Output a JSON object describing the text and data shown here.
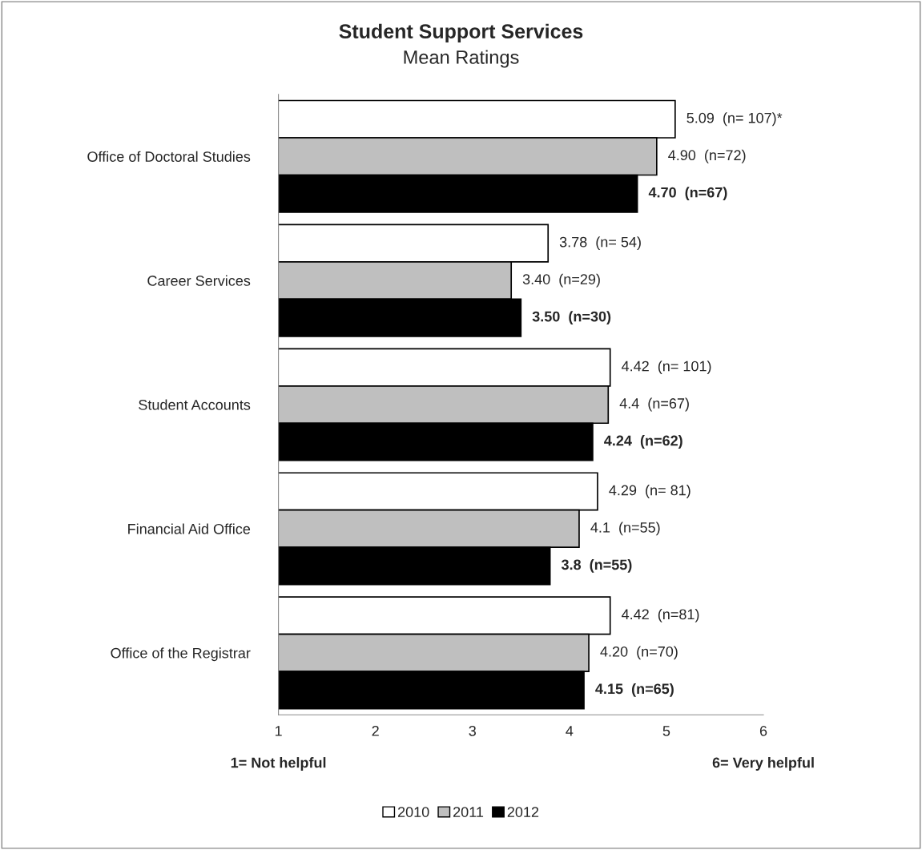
{
  "chart_data": {
    "type": "bar",
    "orientation": "horizontal",
    "title": "Student Support Services",
    "subtitle": "Mean Ratings",
    "categories": [
      "Office of Doctoral Studies",
      "Career Services",
      "Student Accounts",
      "Financial Aid Office",
      "Office of the Registrar"
    ],
    "series": [
      {
        "name": "2010",
        "color": "#ffffff",
        "values": [
          5.09,
          3.78,
          4.42,
          4.29,
          4.42
        ],
        "value_labels": [
          "5.09  (n= 107)*",
          "3.78  (n= 54)",
          "4.42  (n= 101)",
          "4.29  (n= 81)",
          "4.42  (n=81)"
        ]
      },
      {
        "name": "2011",
        "color": "#bfbfbf",
        "values": [
          4.9,
          3.4,
          4.4,
          4.1,
          4.2
        ],
        "value_labels": [
          "4.90  (n=72)",
          "3.40  (n=29)",
          "4.4  (n=67)",
          "4.1  (n=55)",
          "4.20  (n=70)"
        ]
      },
      {
        "name": "2012",
        "color": "#000000",
        "values": [
          4.7,
          3.5,
          4.24,
          3.8,
          4.15
        ],
        "value_labels": [
          "4.70  (n=67)",
          "3.50  (n=30)",
          "4.24  (n=62)",
          "3.8  (n=55)",
          "4.15  (n=65)"
        ]
      }
    ],
    "xlim": [
      1,
      6
    ],
    "xticks": [
      1,
      2,
      3,
      4,
      5,
      6
    ],
    "grid": false,
    "legend": "bottom",
    "annotations": [
      "1= Not helpful",
      "6= Very helpful"
    ]
  }
}
